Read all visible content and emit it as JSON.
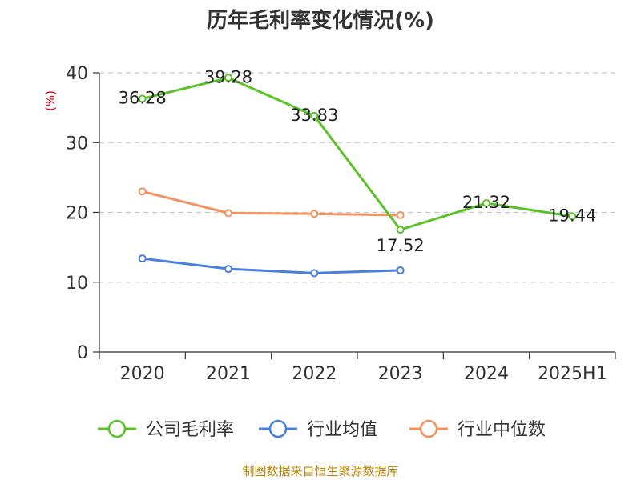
{
  "chart_data": {
    "type": "line",
    "title": "历年毛利率变化情况(%)",
    "ylabel": "(%)",
    "xlabel": "",
    "categories": [
      "2020",
      "2021",
      "2022",
      "2023",
      "2024",
      "2025H1"
    ],
    "ylim": [
      0,
      40
    ],
    "yticks": [
      0,
      10,
      20,
      30,
      40
    ],
    "grid": true,
    "legend_position": "bottom",
    "series": [
      {
        "name": "公司毛利率",
        "color": "#5bc228",
        "values": [
          36.28,
          39.28,
          33.83,
          17.52,
          21.32,
          19.44
        ],
        "labels": [
          "36.28",
          "39.28",
          "33.83",
          "17.52",
          "21.32",
          "19.44"
        ]
      },
      {
        "name": "行业均值",
        "color": "#4a7fdd",
        "values": [
          13.4,
          11.9,
          11.3,
          11.7,
          null,
          null
        ]
      },
      {
        "name": "行业中位数",
        "color": "#f5925f",
        "values": [
          23.0,
          19.9,
          19.8,
          19.6,
          null,
          null
        ]
      }
    ],
    "source": "制图数据来自恒生聚源数据库"
  }
}
